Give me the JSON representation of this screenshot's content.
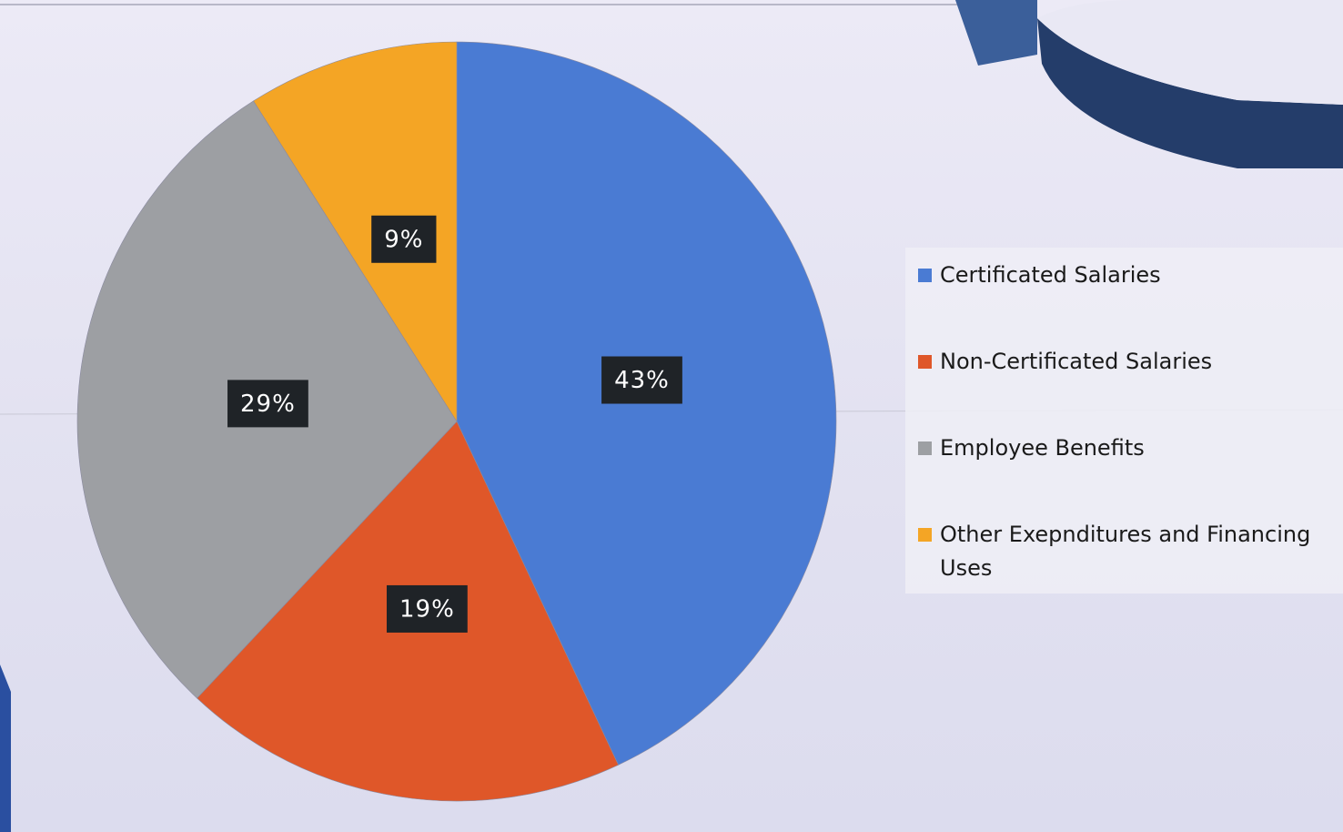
{
  "chart_data": {
    "type": "pie",
    "categories": [
      "Certificated Salaries",
      "Non-Certificated Salaries",
      "Employee Benefits",
      "Other Exepnditures and Financing Uses"
    ],
    "values": [
      43,
      19,
      29,
      9
    ],
    "value_labels": [
      "43%",
      "19%",
      "29%",
      "9%"
    ],
    "colors": [
      "#4a7bd3",
      "#df5729",
      "#9d9fa3",
      "#f4a525"
    ],
    "legend": "right"
  }
}
